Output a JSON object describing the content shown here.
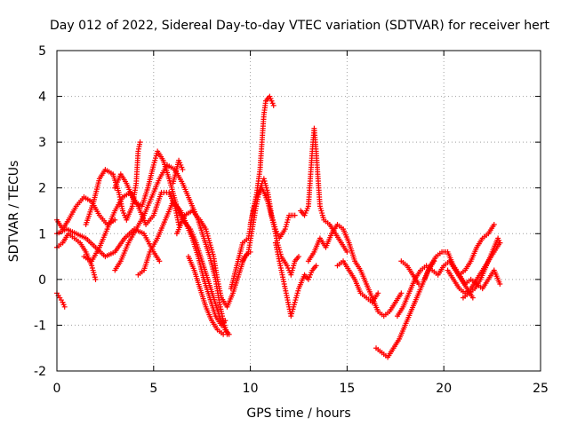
{
  "chart_data": {
    "type": "scatter",
    "title": "Day 012 of 2022, Sidereal Day-to-day VTEC variation (SDTVAR) for receiver hert",
    "xlabel": "GPS time / hours",
    "ylabel": "SDTVAR / TECUs",
    "xlim": [
      0,
      25
    ],
    "ylim": [
      -2,
      5
    ],
    "x_ticks": [
      0,
      5,
      10,
      15,
      20,
      25
    ],
    "x_tick_labels": [
      "0",
      "5",
      "10",
      "15",
      "20",
      "25"
    ],
    "y_ticks": [
      -2,
      -1,
      0,
      1,
      2,
      3,
      4,
      5
    ],
    "y_tick_labels": [
      "-2",
      "-1",
      "0",
      "1",
      "2",
      "3",
      "4",
      "5"
    ],
    "grid": true,
    "marker": "plus",
    "color": "#ff0000",
    "series": [
      {
        "name": "trace1",
        "points": [
          [
            0.0,
            0.7
          ],
          [
            0.3,
            0.8
          ],
          [
            0.6,
            1.0
          ],
          [
            0.9,
            0.9
          ],
          [
            1.2,
            0.8
          ],
          [
            1.5,
            0.6
          ],
          [
            1.8,
            0.3
          ],
          [
            2.0,
            0.0
          ]
        ]
      },
      {
        "name": "trace2",
        "points": [
          [
            0.0,
            -0.3
          ],
          [
            0.15,
            -0.4
          ],
          [
            0.3,
            -0.5
          ],
          [
            0.4,
            -0.6
          ]
        ]
      },
      {
        "name": "trace3",
        "points": [
          [
            0.0,
            1.3
          ],
          [
            0.3,
            1.1
          ],
          [
            0.6,
            1.3
          ],
          [
            1.0,
            1.6
          ],
          [
            1.4,
            1.8
          ],
          [
            1.8,
            1.7
          ],
          [
            2.2,
            1.4
          ],
          [
            2.6,
            1.2
          ],
          [
            3.0,
            1.3
          ]
        ]
      },
      {
        "name": "trace4",
        "points": [
          [
            0.0,
            1.0
          ],
          [
            0.5,
            1.1
          ],
          [
            1.0,
            1.0
          ],
          [
            1.5,
            0.9
          ],
          [
            2.0,
            0.7
          ],
          [
            2.5,
            0.5
          ],
          [
            3.0,
            0.6
          ],
          [
            3.5,
            0.9
          ],
          [
            4.0,
            1.1
          ],
          [
            4.5,
            1.0
          ],
          [
            5.0,
            0.6
          ],
          [
            5.3,
            0.4
          ]
        ]
      },
      {
        "name": "trace5",
        "points": [
          [
            1.5,
            1.2
          ],
          [
            1.9,
            1.7
          ],
          [
            2.2,
            2.2
          ],
          [
            2.5,
            2.4
          ],
          [
            2.9,
            2.3
          ],
          [
            3.2,
            1.9
          ],
          [
            3.4,
            1.5
          ],
          [
            3.6,
            1.3
          ],
          [
            3.9,
            1.6
          ],
          [
            4.1,
            2.1
          ],
          [
            4.2,
            2.8
          ],
          [
            4.3,
            3.0
          ]
        ]
      },
      {
        "name": "trace6",
        "points": [
          [
            1.4,
            0.5
          ],
          [
            1.8,
            0.4
          ],
          [
            2.2,
            0.7
          ],
          [
            2.6,
            1.1
          ],
          [
            3.0,
            1.5
          ],
          [
            3.4,
            1.8
          ],
          [
            3.8,
            1.9
          ],
          [
            4.2,
            1.6
          ],
          [
            4.6,
            1.2
          ],
          [
            5.0,
            1.4
          ],
          [
            5.4,
            1.9
          ],
          [
            5.8,
            1.9
          ],
          [
            6.1,
            1.6
          ],
          [
            6.3,
            1.2
          ]
        ]
      },
      {
        "name": "trace7",
        "points": [
          [
            3.0,
            2.0
          ],
          [
            3.3,
            2.3
          ],
          [
            3.6,
            2.1
          ],
          [
            4.0,
            1.7
          ],
          [
            4.4,
            1.6
          ],
          [
            4.7,
            2.0
          ],
          [
            5.0,
            2.5
          ],
          [
            5.2,
            2.8
          ],
          [
            5.5,
            2.6
          ],
          [
            5.8,
            2.2
          ],
          [
            6.2,
            1.6
          ],
          [
            6.5,
            1.3
          ],
          [
            6.9,
            1.1
          ],
          [
            7.2,
            0.8
          ],
          [
            7.5,
            0.4
          ],
          [
            7.8,
            0.0
          ],
          [
            8.1,
            -0.4
          ],
          [
            8.4,
            -0.8
          ],
          [
            8.7,
            -1.1
          ],
          [
            8.9,
            -1.2
          ]
        ]
      },
      {
        "name": "trace8",
        "points": [
          [
            3.0,
            0.2
          ],
          [
            3.3,
            0.4
          ],
          [
            3.7,
            0.8
          ],
          [
            4.1,
            1.1
          ],
          [
            4.5,
            1.4
          ],
          [
            4.9,
            1.8
          ],
          [
            5.3,
            2.2
          ],
          [
            5.7,
            2.5
          ],
          [
            6.1,
            2.4
          ],
          [
            6.5,
            2.1
          ],
          [
            6.9,
            1.7
          ],
          [
            7.3,
            1.3
          ],
          [
            7.6,
            0.9
          ],
          [
            7.9,
            0.5
          ],
          [
            8.2,
            0.0
          ],
          [
            8.4,
            -0.5
          ],
          [
            8.6,
            -0.9
          ],
          [
            8.8,
            -1.2
          ]
        ]
      },
      {
        "name": "trace9",
        "points": [
          [
            4.2,
            0.1
          ],
          [
            4.5,
            0.2
          ],
          [
            4.8,
            0.6
          ],
          [
            5.2,
            0.9
          ],
          [
            5.6,
            1.3
          ],
          [
            6.0,
            1.7
          ],
          [
            6.4,
            1.5
          ],
          [
            6.7,
            1.2
          ],
          [
            7.0,
            0.9
          ],
          [
            7.3,
            0.5
          ],
          [
            7.6,
            0.0
          ],
          [
            7.9,
            -0.4
          ],
          [
            8.2,
            -0.8
          ],
          [
            8.5,
            -1.0
          ],
          [
            8.7,
            -0.9
          ]
        ]
      },
      {
        "name": "trace10",
        "points": [
          [
            6.2,
            1.0
          ],
          [
            6.6,
            1.4
          ],
          [
            7.0,
            1.5
          ],
          [
            7.4,
            1.3
          ],
          [
            7.7,
            1.1
          ],
          [
            7.9,
            0.8
          ],
          [
            8.1,
            0.5
          ],
          [
            8.3,
            0.0
          ],
          [
            8.5,
            -0.4
          ],
          [
            8.8,
            -0.6
          ],
          [
            9.1,
            -0.3
          ],
          [
            9.4,
            0.1
          ],
          [
            9.7,
            0.5
          ],
          [
            10.0,
            0.6
          ]
        ]
      },
      {
        "name": "trace11",
        "points": [
          [
            6.0,
            2.1
          ],
          [
            6.3,
            2.6
          ],
          [
            6.5,
            2.4
          ]
        ]
      },
      {
        "name": "trace12",
        "points": [
          [
            6.8,
            0.5
          ],
          [
            7.1,
            0.2
          ],
          [
            7.4,
            -0.2
          ],
          [
            7.7,
            -0.6
          ],
          [
            8.0,
            -0.9
          ],
          [
            8.3,
            -1.1
          ],
          [
            8.6,
            -1.2
          ]
        ]
      },
      {
        "name": "trace13",
        "points": [
          [
            9.0,
            -0.2
          ],
          [
            9.3,
            0.3
          ],
          [
            9.6,
            0.8
          ],
          [
            9.9,
            0.9
          ],
          [
            10.1,
            1.4
          ],
          [
            10.3,
            1.8
          ],
          [
            10.5,
            2.4
          ],
          [
            10.6,
            3.0
          ],
          [
            10.7,
            3.6
          ],
          [
            10.8,
            3.9
          ],
          [
            11.0,
            4.0
          ],
          [
            11.2,
            3.8
          ]
        ]
      },
      {
        "name": "trace14",
        "points": [
          [
            9.6,
            0.4
          ],
          [
            9.9,
            0.6
          ],
          [
            10.1,
            1.1
          ],
          [
            10.3,
            1.6
          ],
          [
            10.5,
            2.0
          ],
          [
            10.7,
            2.2
          ],
          [
            10.9,
            1.9
          ],
          [
            11.1,
            1.4
          ],
          [
            11.3,
            1.1
          ],
          [
            11.5,
            0.9
          ],
          [
            11.8,
            1.1
          ],
          [
            12.0,
            1.4
          ],
          [
            12.3,
            1.4
          ]
        ]
      },
      {
        "name": "trace15",
        "points": [
          [
            10.0,
            1.2
          ],
          [
            10.3,
            1.8
          ],
          [
            10.6,
            2.0
          ],
          [
            10.9,
            1.7
          ],
          [
            11.2,
            1.2
          ],
          [
            11.4,
            0.8
          ],
          [
            11.6,
            0.5
          ],
          [
            11.9,
            0.3
          ],
          [
            12.1,
            0.1
          ],
          [
            12.3,
            0.4
          ],
          [
            12.5,
            0.5
          ]
        ]
      },
      {
        "name": "trace16",
        "points": [
          [
            11.3,
            0.8
          ],
          [
            11.5,
            0.4
          ],
          [
            11.7,
            0.0
          ],
          [
            11.9,
            -0.4
          ],
          [
            12.1,
            -0.8
          ],
          [
            12.3,
            -0.5
          ],
          [
            12.5,
            -0.2
          ],
          [
            12.8,
            0.1
          ],
          [
            13.0,
            0.0
          ],
          [
            13.2,
            0.2
          ],
          [
            13.4,
            0.3
          ]
        ]
      },
      {
        "name": "trace17",
        "points": [
          [
            12.6,
            1.5
          ],
          [
            12.8,
            1.4
          ],
          [
            13.0,
            1.6
          ],
          [
            13.1,
            2.2
          ],
          [
            13.2,
            2.8
          ],
          [
            13.3,
            3.3
          ],
          [
            13.4,
            2.8
          ],
          [
            13.5,
            2.2
          ],
          [
            13.6,
            1.6
          ],
          [
            13.8,
            1.3
          ],
          [
            14.1,
            1.2
          ],
          [
            14.4,
            1.0
          ],
          [
            14.7,
            0.8
          ],
          [
            15.0,
            0.6
          ]
        ]
      },
      {
        "name": "trace18",
        "points": [
          [
            13.0,
            0.4
          ],
          [
            13.3,
            0.6
          ],
          [
            13.6,
            0.9
          ],
          [
            13.9,
            0.7
          ],
          [
            14.2,
            1.0
          ],
          [
            14.5,
            1.2
          ],
          [
            14.8,
            1.1
          ],
          [
            15.1,
            0.8
          ],
          [
            15.4,
            0.4
          ],
          [
            15.7,
            0.2
          ],
          [
            16.0,
            -0.1
          ],
          [
            16.3,
            -0.4
          ],
          [
            16.6,
            -0.7
          ],
          [
            16.9,
            -0.8
          ],
          [
            17.2,
            -0.7
          ],
          [
            17.5,
            -0.5
          ],
          [
            17.8,
            -0.3
          ]
        ]
      },
      {
        "name": "trace19",
        "points": [
          [
            14.5,
            0.3
          ],
          [
            14.8,
            0.4
          ],
          [
            15.1,
            0.2
          ],
          [
            15.4,
            0.0
          ],
          [
            15.7,
            -0.3
          ],
          [
            16.0,
            -0.4
          ],
          [
            16.3,
            -0.5
          ],
          [
            16.6,
            -0.3
          ]
        ]
      },
      {
        "name": "trace20",
        "points": [
          [
            16.5,
            -1.5
          ],
          [
            16.8,
            -1.6
          ],
          [
            17.1,
            -1.7
          ],
          [
            17.4,
            -1.5
          ],
          [
            17.7,
            -1.3
          ],
          [
            18.0,
            -1.0
          ],
          [
            18.3,
            -0.7
          ],
          [
            18.6,
            -0.4
          ],
          [
            18.9,
            -0.1
          ],
          [
            19.2,
            0.2
          ],
          [
            19.5,
            0.4
          ]
        ]
      },
      {
        "name": "trace21",
        "points": [
          [
            17.6,
            -0.8
          ],
          [
            17.9,
            -0.6
          ],
          [
            18.2,
            -0.3
          ],
          [
            18.5,
            0.0
          ],
          [
            18.8,
            0.2
          ],
          [
            19.1,
            0.3
          ],
          [
            19.4,
            0.2
          ],
          [
            19.7,
            0.1
          ],
          [
            20.0,
            0.3
          ],
          [
            20.3,
            0.4
          ],
          [
            20.6,
            0.2
          ],
          [
            20.9,
            0.0
          ],
          [
            21.2,
            -0.2
          ],
          [
            21.5,
            -0.4
          ]
        ]
      },
      {
        "name": "trace22",
        "points": [
          [
            17.8,
            0.4
          ],
          [
            18.1,
            0.3
          ],
          [
            18.4,
            0.1
          ],
          [
            18.7,
            -0.1
          ]
        ]
      },
      {
        "name": "trace23",
        "points": [
          [
            19.0,
            0.0
          ],
          [
            19.3,
            0.3
          ],
          [
            19.6,
            0.5
          ],
          [
            19.9,
            0.6
          ],
          [
            20.2,
            0.6
          ],
          [
            20.5,
            0.3
          ],
          [
            20.8,
            0.1
          ],
          [
            21.1,
            0.2
          ],
          [
            21.4,
            0.4
          ],
          [
            21.7,
            0.7
          ],
          [
            22.0,
            0.9
          ],
          [
            22.3,
            1.0
          ],
          [
            22.6,
            1.2
          ]
        ]
      },
      {
        "name": "trace24",
        "points": [
          [
            20.2,
            0.2
          ],
          [
            20.5,
            0.0
          ],
          [
            20.8,
            -0.2
          ],
          [
            21.1,
            -0.3
          ],
          [
            21.4,
            -0.2
          ],
          [
            21.7,
            0.0
          ],
          [
            22.0,
            0.2
          ],
          [
            22.3,
            0.4
          ],
          [
            22.6,
            0.6
          ],
          [
            22.9,
            0.8
          ]
        ]
      },
      {
        "name": "trace25",
        "points": [
          [
            20.5,
            0.3
          ],
          [
            20.8,
            0.1
          ],
          [
            21.1,
            -0.1
          ],
          [
            21.4,
            0.0
          ],
          [
            21.7,
            -0.1
          ],
          [
            22.0,
            -0.2
          ],
          [
            22.3,
            0.0
          ],
          [
            22.6,
            0.2
          ],
          [
            22.9,
            -0.1
          ]
        ]
      },
      {
        "name": "trace26",
        "points": [
          [
            21.0,
            -0.4
          ],
          [
            21.3,
            -0.3
          ],
          [
            21.6,
            -0.2
          ],
          [
            21.9,
            0.0
          ],
          [
            22.2,
            0.3
          ],
          [
            22.5,
            0.6
          ],
          [
            22.8,
            0.9
          ],
          [
            22.9,
            0.8
          ]
        ]
      }
    ]
  }
}
